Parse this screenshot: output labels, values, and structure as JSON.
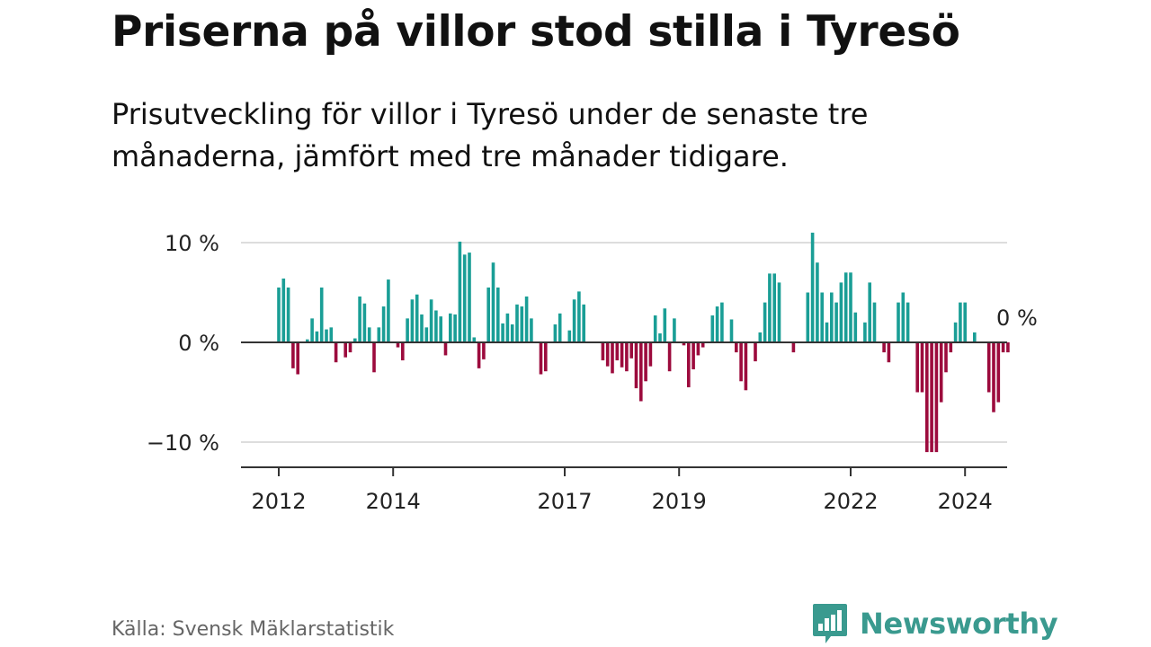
{
  "header": {
    "title": "Priserna på villor stod stilla i Tyresö",
    "subtitle": "Prisutveckling för villor i Tyresö under de senaste tre månaderna, jämfört med tre månader tidigare."
  },
  "footer": {
    "source": "Källa: Svensk Mäklarstatistik",
    "brand": "Newsworthy",
    "brand_icon": "bar-chart-speech-bubble-icon"
  },
  "colors": {
    "positive": "#1a9e96",
    "negative": "#9c0b3d",
    "grid": "#dddddd",
    "axis": "#333333",
    "brand": "#3a9a8f"
  },
  "chart_data": {
    "type": "bar",
    "title": "Priserna på villor stod stilla i Tyresö",
    "xlabel": "",
    "ylabel": "",
    "x_start": "2012-01",
    "interval": "month",
    "ylim": [
      -12.5,
      10.5
    ],
    "yticks": [
      10,
      0,
      -10
    ],
    "ytick_labels": [
      "10 %",
      "0 %",
      "−10 %"
    ],
    "xticks": [
      "2012",
      "2014",
      "2017",
      "2019",
      "2022",
      "2024"
    ],
    "xtick_index": [
      0,
      24,
      60,
      84,
      120,
      144
    ],
    "annotation": "0 %",
    "values": [
      5.5,
      6.4,
      5.5,
      -2.6,
      -3.2,
      0,
      0.3,
      2.4,
      1.1,
      5.5,
      1.3,
      1.5,
      -2.0,
      0,
      -1.5,
      -1.0,
      0.4,
      4.6,
      3.9,
      1.5,
      -3.0,
      1.5,
      3.6,
      6.3,
      0,
      -0.5,
      -1.8,
      2.4,
      4.3,
      4.8,
      2.8,
      1.5,
      4.3,
      3.2,
      2.6,
      -1.3,
      2.9,
      2.8,
      10.1,
      8.8,
      9.0,
      0.5,
      -2.6,
      -1.7,
      5.5,
      8.0,
      5.5,
      1.9,
      2.9,
      1.8,
      3.8,
      3.6,
      4.6,
      2.4,
      0,
      -3.2,
      -2.9,
      0,
      1.8,
      2.9,
      0,
      1.2,
      4.3,
      5.1,
      3.8,
      0,
      0,
      0,
      -1.8,
      -2.4,
      -3.1,
      -1.8,
      -2.5,
      -2.9,
      -1.6,
      -4.6,
      -5.9,
      -3.9,
      -2.4,
      2.7,
      0.9,
      3.4,
      -2.9,
      2.4,
      0,
      -0.3,
      -4.5,
      -2.7,
      -1.3,
      -0.5,
      0,
      2.7,
      3.6,
      4.0,
      0,
      2.3,
      -1.0,
      -3.9,
      -4.8,
      0,
      -1.9,
      1.0,
      4.0,
      6.9,
      6.9,
      6.0,
      0,
      0,
      -1.0,
      0,
      0,
      5.0,
      11.0,
      8.0,
      5.0,
      2.0,
      5.0,
      4.0,
      6.0,
      7.0,
      7.0,
      3.0,
      0,
      2.0,
      6.0,
      4.0,
      0,
      -1.0,
      -2.0,
      0,
      4.0,
      5.0,
      4.0,
      0,
      -5.0,
      -5.0,
      -11.0,
      -11.0,
      -11.0,
      -6.0,
      -3.0,
      -1.0,
      2.0,
      4.0,
      4.0,
      0,
      1.0,
      0,
      0,
      -5.0,
      -7.0,
      -6.0,
      -1.0,
      -1.0
    ]
  }
}
